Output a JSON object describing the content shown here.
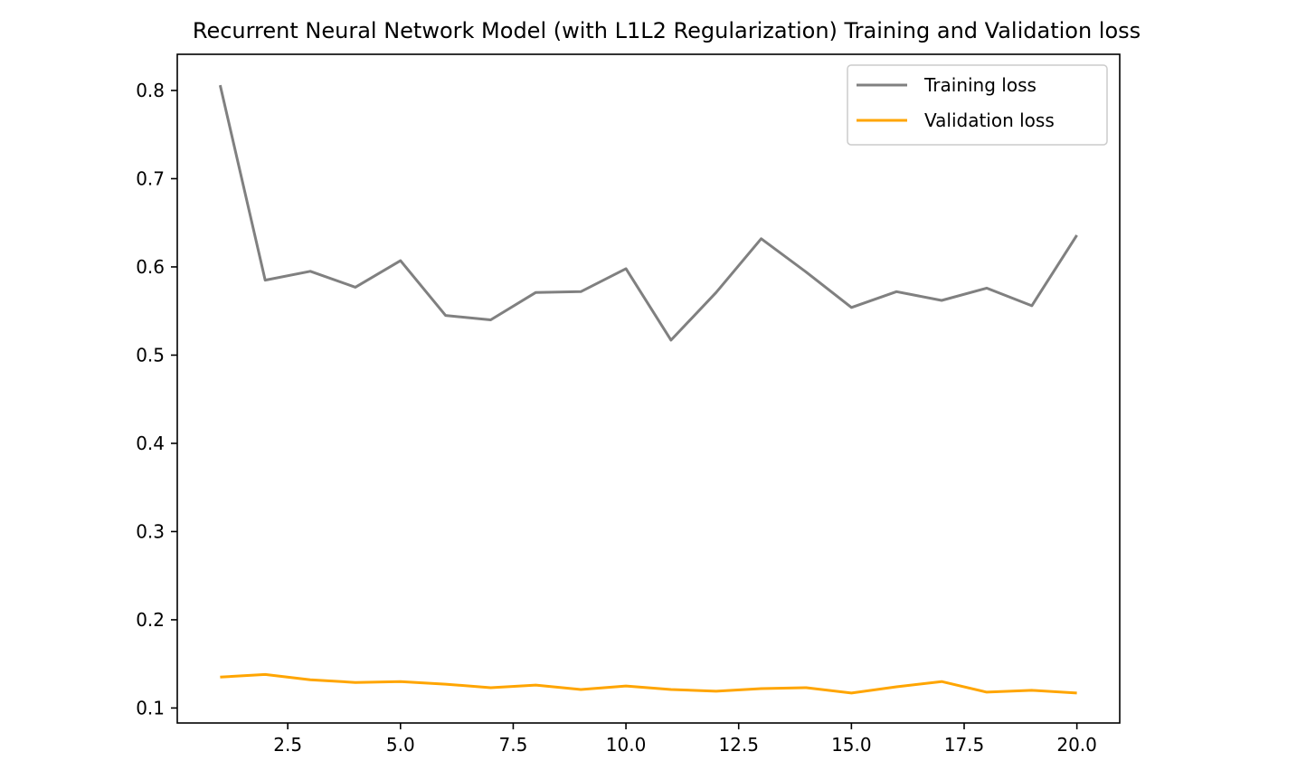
{
  "chart_data": {
    "type": "line",
    "title": "Recurrent Neural Network Model (with L1L2 Regularization) Training and Validation loss",
    "xlabel": "",
    "ylabel": "",
    "x": [
      1,
      2,
      3,
      4,
      5,
      6,
      7,
      8,
      9,
      10,
      11,
      12,
      13,
      14,
      15,
      16,
      17,
      18,
      19,
      20
    ],
    "xlim": [
      0.05,
      20.95
    ],
    "ylim": [
      0.083,
      0.841
    ],
    "xticks": [
      2.5,
      5.0,
      7.5,
      10.0,
      12.5,
      15.0,
      17.5,
      20.0
    ],
    "xtick_labels": [
      "2.5",
      "5.0",
      "7.5",
      "10.0",
      "12.5",
      "15.0",
      "17.5",
      "20.0"
    ],
    "yticks": [
      0.1,
      0.2,
      0.3,
      0.4,
      0.5,
      0.6,
      0.7,
      0.8
    ],
    "ytick_labels": [
      "0.1",
      "0.2",
      "0.3",
      "0.4",
      "0.5",
      "0.6",
      "0.7",
      "0.8"
    ],
    "grid": false,
    "legend_position": "top-right",
    "series": [
      {
        "name": "Training loss",
        "color": "#808080",
        "values": [
          0.806,
          0.585,
          0.595,
          0.577,
          0.607,
          0.545,
          0.54,
          0.571,
          0.572,
          0.598,
          0.517,
          0.571,
          0.632,
          0.594,
          0.554,
          0.572,
          0.562,
          0.576,
          0.556,
          0.636
        ]
      },
      {
        "name": "Validation loss",
        "color": "#ffa500",
        "values": [
          0.135,
          0.138,
          0.132,
          0.129,
          0.13,
          0.127,
          0.123,
          0.126,
          0.121,
          0.125,
          0.121,
          0.119,
          0.122,
          0.123,
          0.117,
          0.124,
          0.13,
          0.118,
          0.12,
          0.117
        ]
      }
    ]
  }
}
